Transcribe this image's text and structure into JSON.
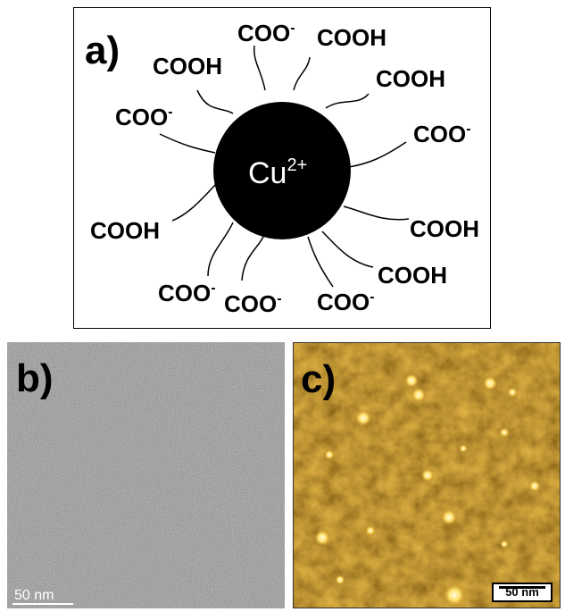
{
  "panel_a": {
    "label": "a)",
    "core": {
      "text": "Cu",
      "charge": "2+"
    },
    "ligands": [
      {
        "text": "COO",
        "sup": "-"
      },
      {
        "text": "COOH",
        "sup": ""
      },
      {
        "text": "COOH",
        "sup": ""
      },
      {
        "text": "COOH",
        "sup": ""
      },
      {
        "text": "COO",
        "sup": "-"
      },
      {
        "text": "COO",
        "sup": "-"
      },
      {
        "text": "COOH",
        "sup": ""
      },
      {
        "text": "COOH",
        "sup": ""
      },
      {
        "text": "COO",
        "sup": "-"
      },
      {
        "text": "COO",
        "sup": "-"
      },
      {
        "text": "COO",
        "sup": "-"
      },
      {
        "text": "COOH",
        "sup": ""
      }
    ]
  },
  "panel_b": {
    "label": "b)",
    "scale_bar": "50 nm",
    "image_type": "TEM micrograph (grayscale noise)"
  },
  "panel_c": {
    "label": "c)",
    "scale_bar": "50 nm",
    "image_type": "AFM topography (gold/brown)"
  },
  "colors": {
    "afm_dark": "#3a2606",
    "afm_mid": "#8a5a10",
    "afm_bright": "#ffe680",
    "tem_gray": "#8c8c8c"
  }
}
